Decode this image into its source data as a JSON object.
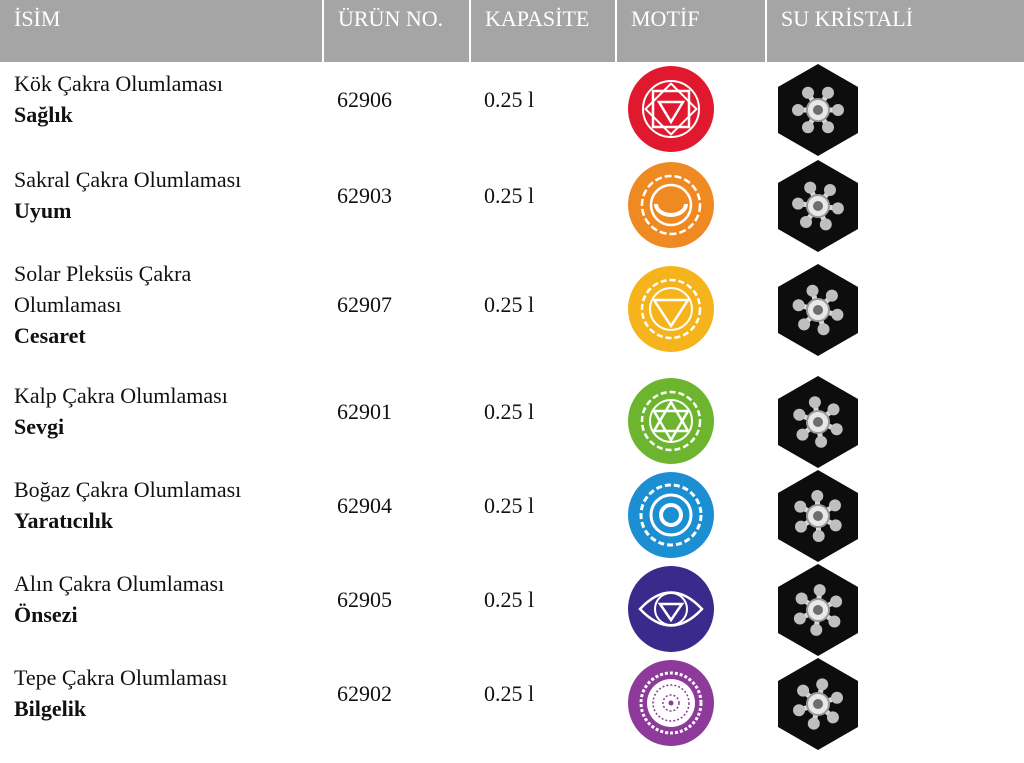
{
  "headers": {
    "name": "İSİM",
    "product_no": "ÜRÜN NO.",
    "capacity": "KAPASİTE",
    "motif": "MOTİF",
    "crystal": "SU KRİSTALİ"
  },
  "rows": [
    {
      "name_lines": [
        "Kök Çakra Olumlaması"
      ],
      "bold": "Sağlık",
      "number": "62906",
      "capacity": "0.25 l",
      "color": "#e0192f",
      "motif_icon": "root-chakra-icon",
      "crystal_icon": "water-crystal-icon"
    },
    {
      "name_lines": [
        "Sakral Çakra Olumlaması"
      ],
      "bold": "Uyum",
      "number": "62903",
      "capacity": "0.25 l",
      "color": "#ef8a22",
      "motif_icon": "sacral-chakra-icon",
      "crystal_icon": "water-crystal-icon"
    },
    {
      "name_lines": [
        "Solar Pleksüs Çakra",
        "Olumlaması"
      ],
      "bold": "Cesaret",
      "number": "62907",
      "capacity": "0.25 l",
      "color": "#f6b41c",
      "motif_icon": "solar-plexus-chakra-icon",
      "crystal_icon": "water-crystal-icon"
    },
    {
      "name_lines": [
        "Kalp Çakra Olumlaması"
      ],
      "bold": "Sevgi",
      "number": "62901",
      "capacity": "0.25 l",
      "color": "#6db52e",
      "motif_icon": "heart-chakra-icon",
      "crystal_icon": "water-crystal-icon"
    },
    {
      "name_lines": [
        "Boğaz Çakra Olumlaması"
      ],
      "bold": "Yaratıcılık",
      "number": "62904",
      "capacity": "0.25 l",
      "color": "#1c8fd3",
      "motif_icon": "throat-chakra-icon",
      "crystal_icon": "water-crystal-icon"
    },
    {
      "name_lines": [
        "Alın Çakra Olumlaması"
      ],
      "bold": "Önsezi",
      "number": "62905",
      "capacity": "0.25 l",
      "color": "#3a2a8c",
      "motif_icon": "third-eye-chakra-icon",
      "crystal_icon": "water-crystal-icon"
    },
    {
      "name_lines": [
        "Tepe Çakra Olumlaması"
      ],
      "bold": "Bilgelik",
      "number": "62902",
      "capacity": "0.25 l",
      "color": "#8d3a9a",
      "motif_icon": "crown-chakra-icon",
      "crystal_icon": "water-crystal-icon"
    }
  ]
}
